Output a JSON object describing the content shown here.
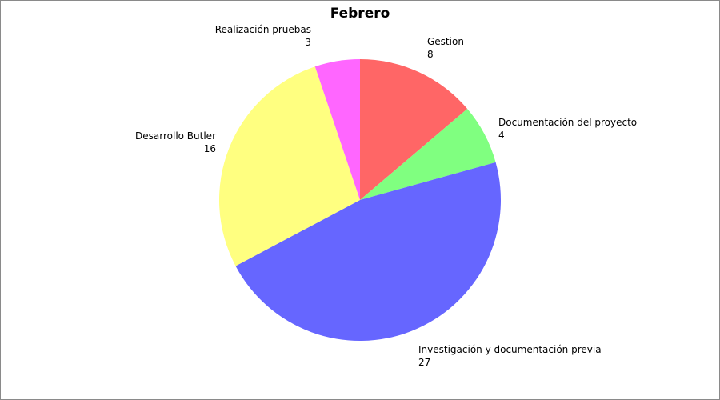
{
  "chart_data": {
    "type": "pie",
    "title": "Febrero",
    "slices": [
      {
        "label": "Gestion",
        "value": 8,
        "color": "#ff6666"
      },
      {
        "label": "Documentación del proyecto",
        "value": 4,
        "color": "#80ff80"
      },
      {
        "label": "Investigación y documentación previa",
        "value": 27,
        "color": "#6666ff"
      },
      {
        "label": "Desarrollo Butler",
        "value": 16,
        "color": "#ffff80"
      },
      {
        "label": "Realización pruebas",
        "value": 3,
        "color": "#ff66ff"
      }
    ],
    "start": "top, clockwise",
    "legend": "none, labels outside slices"
  }
}
